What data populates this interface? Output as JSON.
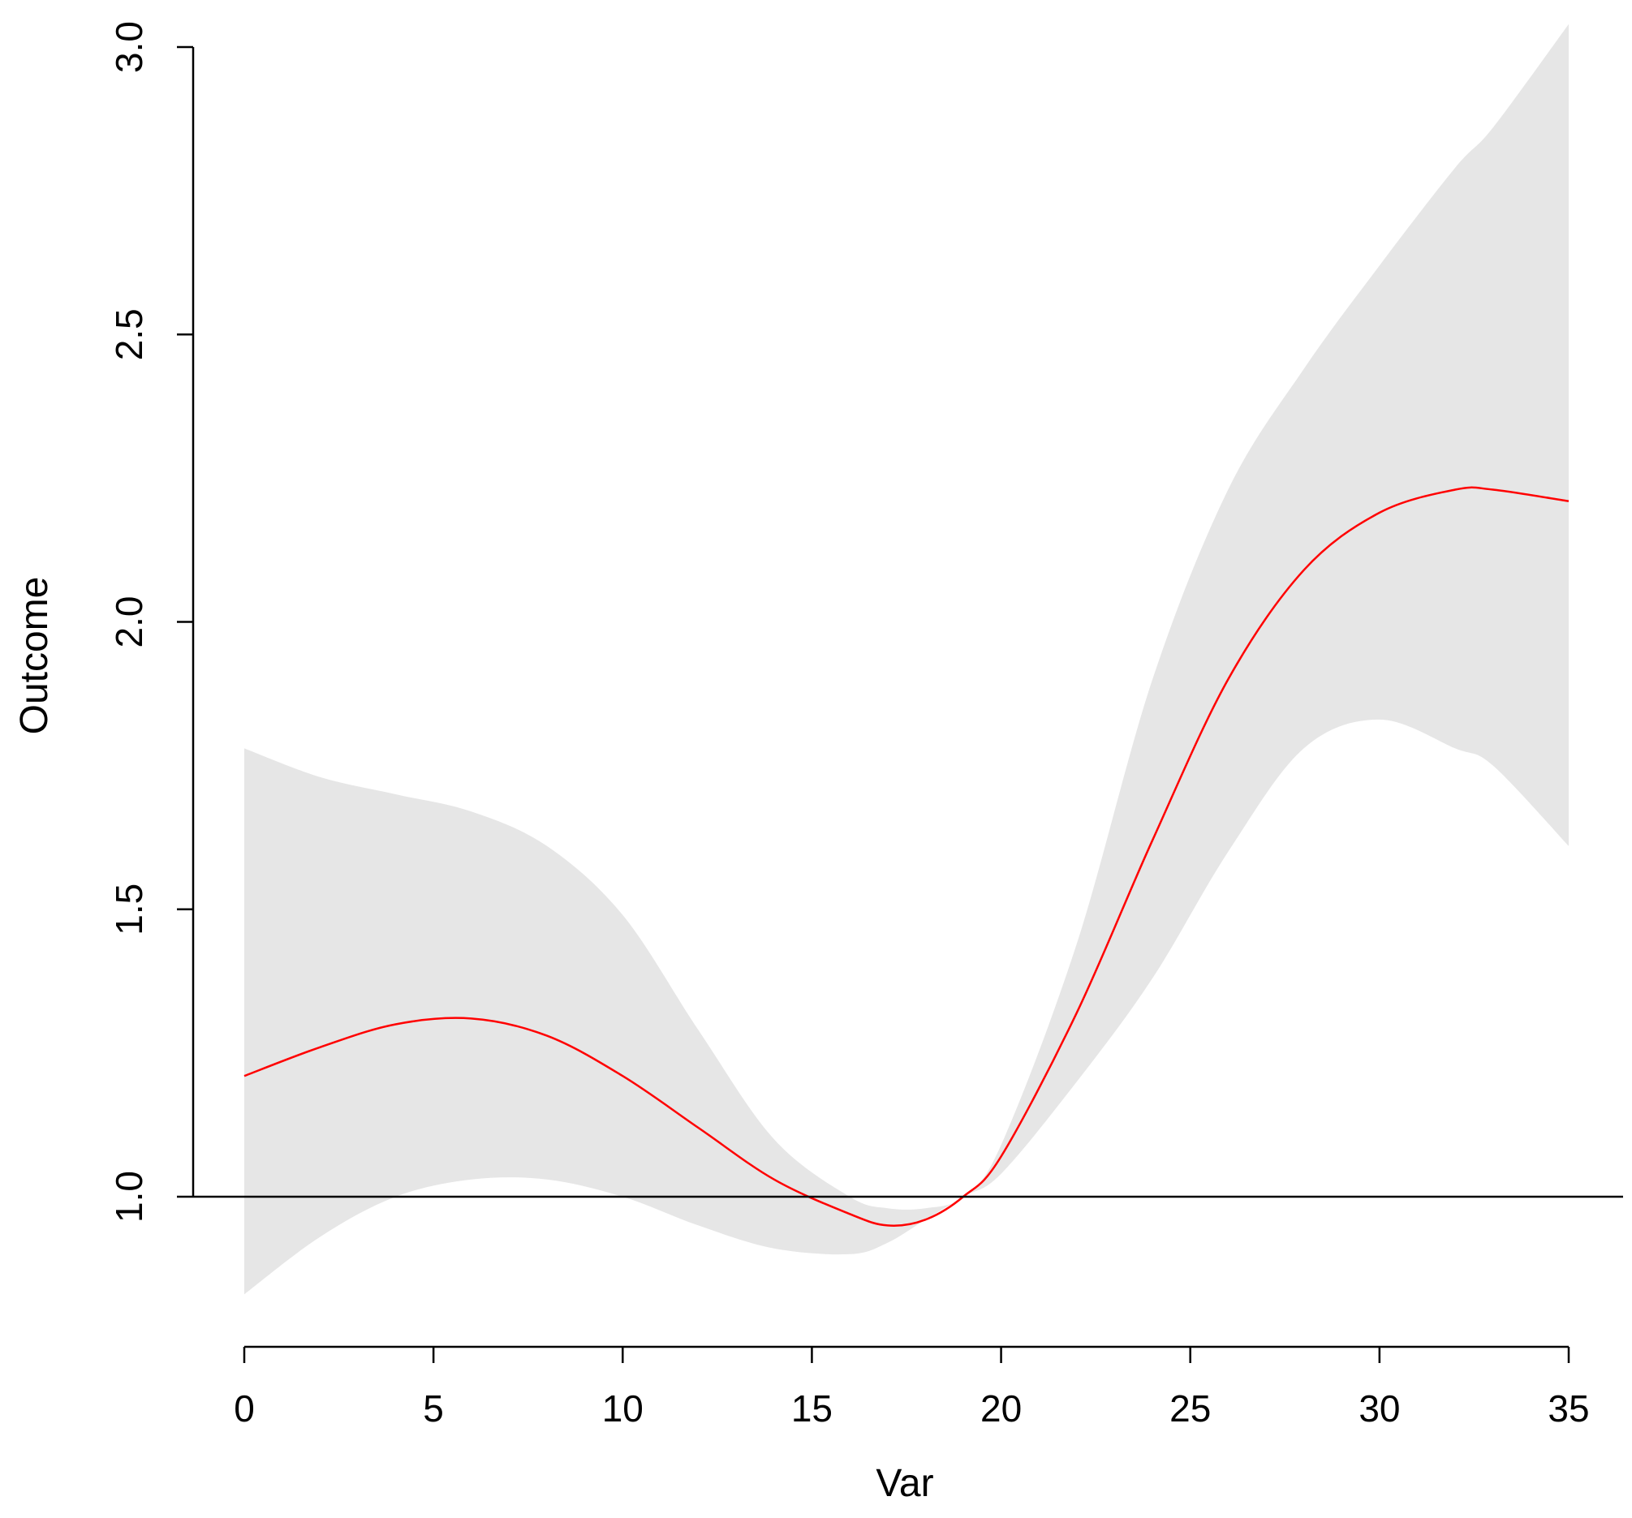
{
  "chart_data": {
    "type": "line",
    "title": "",
    "xlabel": "Var",
    "ylabel": "Outcome",
    "xlim": [
      0,
      35
    ],
    "ylim": [
      1.0,
      3.0
    ],
    "x_ticks": [
      0,
      5,
      10,
      15,
      20,
      25,
      30,
      35
    ],
    "x_tick_labels": [
      "0",
      "5",
      "10",
      "15",
      "20",
      "25",
      "30",
      "35"
    ],
    "y_ticks": [
      1.0,
      1.5,
      2.0,
      2.5,
      3.0
    ],
    "y_tick_labels": [
      "1.0",
      "1.5",
      "2.0",
      "2.5",
      "3.0"
    ],
    "reference_line": {
      "y": 1.0,
      "color": "#000000"
    },
    "grid": false,
    "x": [
      0,
      2,
      4,
      6,
      8,
      10,
      12,
      14,
      16,
      17,
      18,
      19,
      20,
      22,
      24,
      26,
      28,
      30,
      32,
      33,
      35
    ],
    "series": [
      {
        "color": "#ff0000",
        "values": [
          1.21,
          1.26,
          1.3,
          1.31,
          1.28,
          1.21,
          1.12,
          1.03,
          0.97,
          0.95,
          0.96,
          1.0,
          1.07,
          1.32,
          1.62,
          1.9,
          2.09,
          2.19,
          2.23,
          2.23,
          2.21
        ]
      }
    ],
    "ci_band": {
      "color": "#e6e6e6",
      "lower": [
        0.83,
        0.93,
        1.0,
        1.03,
        1.03,
        1.0,
        0.95,
        0.91,
        0.9,
        0.92,
        0.96,
        1.0,
        1.04,
        1.2,
        1.38,
        1.6,
        1.78,
        1.83,
        1.78,
        1.75,
        1.61
      ],
      "upper": [
        1.78,
        1.73,
        1.7,
        1.67,
        1.61,
        1.49,
        1.29,
        1.1,
        1.0,
        0.98,
        0.98,
        1.0,
        1.09,
        1.44,
        1.9,
        2.23,
        2.44,
        2.62,
        2.79,
        2.86,
        3.04
      ]
    }
  }
}
